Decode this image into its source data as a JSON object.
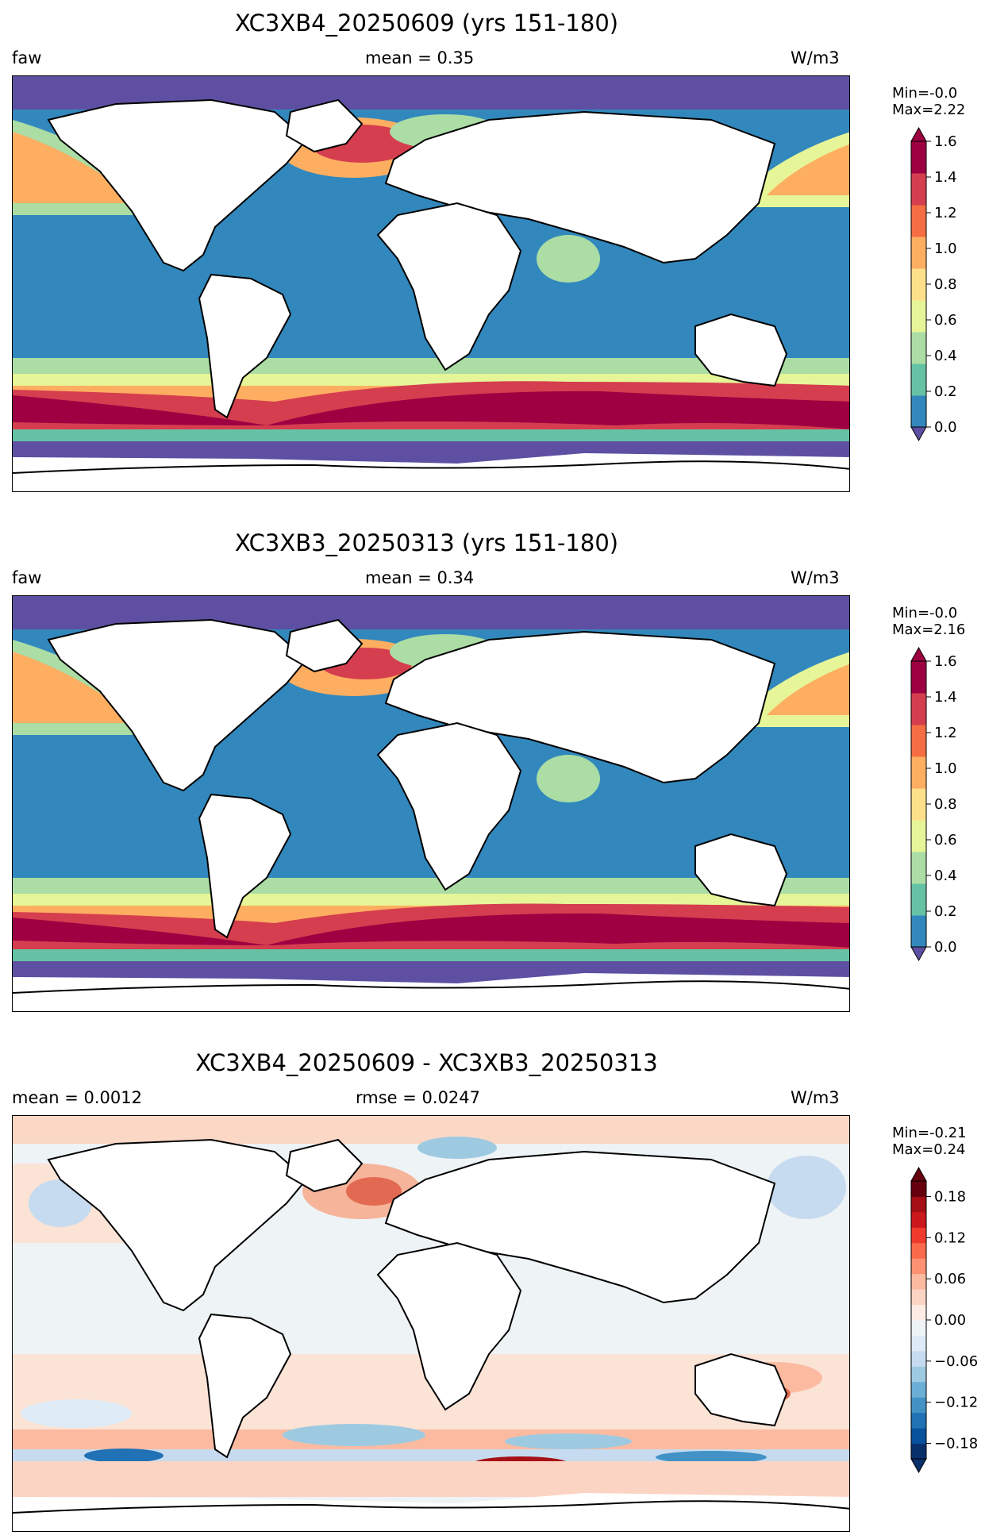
{
  "panels": [
    {
      "title": "XC3XB4_20250609 (yrs 151-180)",
      "left": "faw",
      "center": "mean = 0.35",
      "right": "W/m3",
      "min_label": "Min=-0.0",
      "max_label": "Max=2.22",
      "colorbar": {
        "type": "discrete",
        "colors": [
          "#3288bd",
          "#66c2a5",
          "#abdda4",
          "#e6f598",
          "#fee08b",
          "#fdae61",
          "#f46d43",
          "#d53e4f",
          "#9e0142"
        ],
        "under_color": "#5e4fa2",
        "over_color": "#9e0142",
        "ticks": [
          "0.0",
          "0.2",
          "0.4",
          "0.6",
          "0.8",
          "1.0",
          "1.2",
          "1.4",
          "1.6"
        ]
      }
    },
    {
      "title": "XC3XB3_20250313 (yrs 151-180)",
      "left": "faw",
      "center": "mean = 0.34",
      "right": "W/m3",
      "min_label": "Min=-0.0",
      "max_label": "Max=2.16",
      "colorbar": {
        "type": "discrete",
        "colors": [
          "#3288bd",
          "#66c2a5",
          "#abdda4",
          "#e6f598",
          "#fee08b",
          "#fdae61",
          "#f46d43",
          "#d53e4f",
          "#9e0142"
        ],
        "under_color": "#5e4fa2",
        "over_color": "#9e0142",
        "ticks": [
          "0.0",
          "0.2",
          "0.4",
          "0.6",
          "0.8",
          "1.0",
          "1.2",
          "1.4",
          "1.6"
        ]
      }
    },
    {
      "title": "XC3XB4_20250609 - XC3XB3_20250313",
      "left": "mean = 0.0012",
      "center": "rmse = 0.0247",
      "right": "W/m3",
      "min_label": "Min=-0.21",
      "max_label": "Max=0.24",
      "colorbar": {
        "type": "diverging",
        "colors": [
          "#08306b",
          "#08519c",
          "#2171b5",
          "#4292c6",
          "#6baed6",
          "#9ecae1",
          "#c6dbef",
          "#deebf7",
          "#eef3f6",
          "#fdece4",
          "#fcd4c3",
          "#fcbba1",
          "#fc9272",
          "#fb6a4a",
          "#ef3b2c",
          "#cb181d",
          "#a50f15",
          "#67000d"
        ],
        "under_color": "#08306b",
        "over_color": "#67000d",
        "ticks": [
          "−0.18",
          "−0.12",
          "−0.06",
          "0.00",
          "0.06",
          "0.12",
          "0.18"
        ]
      }
    }
  ]
}
